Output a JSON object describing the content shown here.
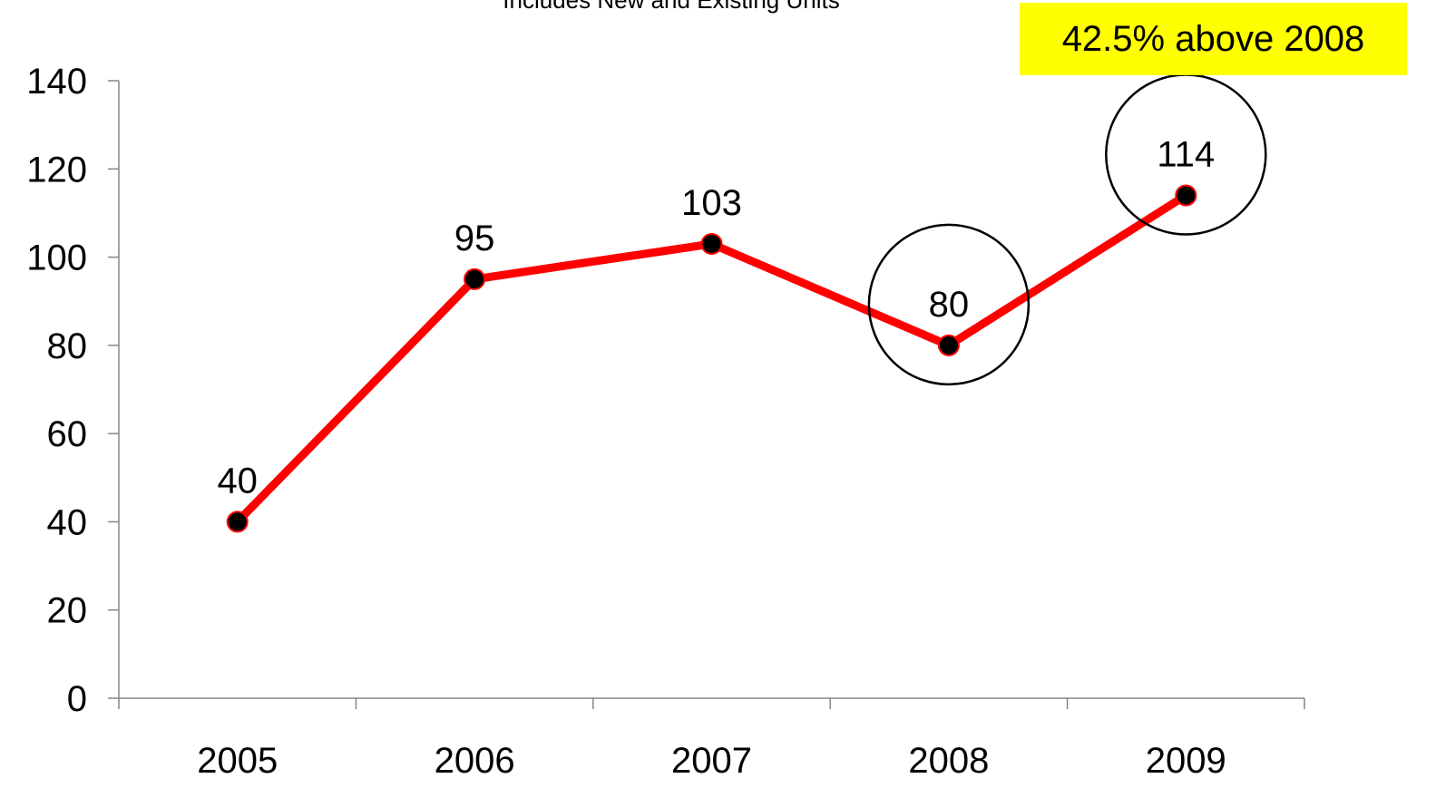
{
  "chart_data": {
    "type": "line",
    "subtitle": "Includes New and Existing Units",
    "categories": [
      "2005",
      "2006",
      "2007",
      "2008",
      "2009"
    ],
    "series": [
      {
        "values": [
          40,
          95,
          103,
          80,
          114
        ]
      }
    ],
    "data_labels": [
      "40",
      "95",
      "103",
      "80",
      "114"
    ],
    "ylim": [
      0,
      140
    ],
    "yticks": [
      0,
      20,
      40,
      60,
      80,
      100,
      120,
      140
    ],
    "highlighted_categories": [
      "2008",
      "2009"
    ],
    "annotation": "42.5% above 2008",
    "grid": false,
    "line_color": "#ff0000",
    "marker_color": "#000000",
    "callout_color": "#ffff00"
  }
}
